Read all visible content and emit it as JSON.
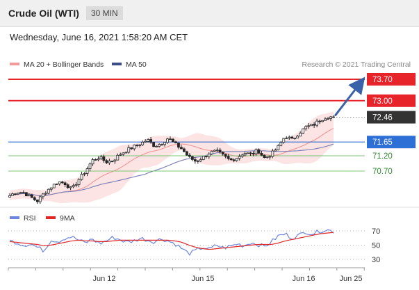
{
  "header": {
    "title": "Crude Oil (WTI)",
    "period": "30 MIN"
  },
  "datetime": "Wednesday, June 16, 2021 1:58:20 AM CET",
  "credit": "Research © 2021 Trading Central",
  "colors": {
    "resistance": "#e8242b",
    "support": "#7cc576",
    "pivot": "#2e6fd6",
    "price_box": "#333333",
    "candle": "#262626",
    "ma20": "#f29a9a",
    "bollinger": "#fbd9d9",
    "ma50": "#7d83b8",
    "rsi": "#6b85e0",
    "rsi_ma": "#e02626",
    "arrow": "#3a62a8"
  },
  "chart_data": [
    {
      "type": "candlestick",
      "legend": [
        "MA 20 + Bollinger Bands",
        "MA 50"
      ],
      "legend_position": "top-left",
      "levels": [
        {
          "label": "73.70",
          "value": 73.7,
          "kind": "resistance"
        },
        {
          "label": "73.00",
          "value": 73.0,
          "kind": "resistance"
        },
        {
          "label": "72.46",
          "value": 72.46,
          "kind": "last"
        },
        {
          "label": "71.65",
          "value": 71.65,
          "kind": "pivot"
        },
        {
          "label": "71.20",
          "value": 71.2,
          "kind": "support"
        },
        {
          "label": "70.70",
          "value": 70.7,
          "kind": "support"
        }
      ],
      "price_path": [
        69.9,
        70.02,
        70.0,
        69.85,
        69.72,
        69.98,
        70.18,
        70.35,
        70.3,
        70.1,
        70.42,
        70.7,
        71.05,
        71.15,
        71.0,
        71.05,
        71.25,
        71.38,
        71.5,
        71.6,
        71.72,
        71.52,
        71.6,
        71.78,
        71.58,
        71.42,
        71.15,
        71.02,
        71.14,
        71.3,
        71.35,
        71.2,
        71.05,
        71.14,
        71.3,
        71.25,
        71.38,
        71.12,
        71.26,
        71.5,
        71.85,
        71.72,
        71.95,
        72.14,
        72.2,
        72.36,
        72.48,
        72.46
      ],
      "x_ticks": [
        "Jun 12",
        "Jun 15",
        "Jun 16",
        "Jun 25"
      ],
      "arrow": {
        "from": 72.46,
        "to": 73.7
      }
    },
    {
      "type": "line",
      "series": [
        {
          "name": "RSI",
          "values": [
            56,
            54,
            50,
            52,
            47,
            42,
            58,
            55,
            60,
            62,
            57,
            53,
            59,
            52,
            56,
            61,
            58,
            54,
            56,
            60,
            57,
            55,
            59,
            56,
            52,
            45,
            38,
            42,
            47,
            44,
            50,
            46,
            48,
            52,
            49,
            54,
            51,
            48,
            55,
            63,
            66,
            60,
            64,
            69,
            66,
            70,
            72,
            69
          ]
        },
        {
          "name": "9MA",
          "values": [
            55,
            54,
            53,
            52,
            51,
            49,
            50,
            52,
            54,
            56,
            57,
            56,
            56,
            55,
            55,
            56,
            57,
            57,
            57,
            57,
            57,
            57,
            57,
            57,
            56,
            54,
            50,
            47,
            45,
            44,
            45,
            46,
            47,
            48,
            49,
            50,
            51,
            51,
            51,
            53,
            56,
            58,
            60,
            62,
            64,
            66,
            67,
            68
          ]
        }
      ],
      "y_ticks": [
        "70",
        "50",
        "30"
      ],
      "ylim": [
        20,
        80
      ],
      "legend_position": "top-left"
    }
  ]
}
